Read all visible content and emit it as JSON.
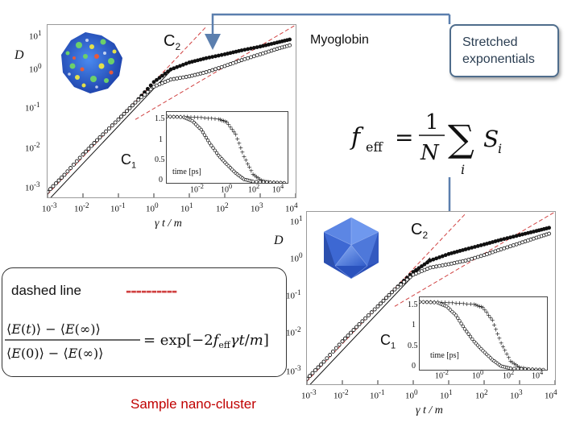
{
  "labels": {
    "myoglobin": "Myoglobin",
    "callout": "Stretched exponentials",
    "dashed_line": "dashed line",
    "dash_sample": "----------",
    "nano_cluster": "Sample nano-cluster",
    "ylabel": "D",
    "xlabel": "γ t / m",
    "c1": "C",
    "c1_sub": "1",
    "c2": "C",
    "c2_sub": "2",
    "inset_xlabel": "time [ps]"
  },
  "equations": {
    "feff": "f_eff = (1/N) Σ_i S_i",
    "relaxation": "(⟨E(t)⟩ − ⟨E(∞)⟩)/(⟨E(0)⟩ − ⟨E(∞)⟩) = exp[−2 f_eff γ t/m]"
  },
  "colors": {
    "callout_border": "#4f6d8c",
    "arrow": "#5b7fae",
    "dashed_line": "#d04040",
    "myoglobin_blue": "#2a5bd7",
    "cluster_blue": "#3f6fd8"
  },
  "chart_data": [
    {
      "type": "scatter",
      "title": "Myoglobin",
      "ylabel": "D",
      "xlabel": "γ t / m",
      "log_x": true,
      "log_y": true,
      "xlim": [
        0.001,
        10000
      ],
      "ylim": [
        0.0005,
        20
      ],
      "x_ticks": [
        "10⁻³",
        "10⁻²",
        "10⁻¹",
        "10⁰",
        "10¹",
        "10²",
        "10³",
        "10⁴"
      ],
      "y_ticks": [
        "10¹",
        "10⁰",
        "10⁻¹",
        "10⁻²",
        "10⁻³"
      ],
      "annotations": [
        "C1",
        "C2"
      ],
      "series": [
        {
          "x": [
            0.001,
            0.003,
            0.01,
            0.03,
            0.1,
            0.3,
            1,
            3,
            10,
            30,
            100,
            300,
            1000,
            3000,
            8000
          ],
          "y": [
            0.0007,
            0.002,
            0.007,
            0.02,
            0.06,
            0.17,
            0.6,
            1.3,
            2.0,
            2.6,
            3.3,
            4.2,
            5.3,
            6.8,
            8.5
          ]
        },
        {
          "x": [
            0.001,
            0.003,
            0.01,
            0.03,
            0.1,
            0.3,
            1,
            3,
            10,
            30,
            100,
            300,
            1000,
            3000,
            8000
          ],
          "y": [
            0.0007,
            0.002,
            0.007,
            0.02,
            0.06,
            0.17,
            0.45,
            0.7,
            0.85,
            1.1,
            1.6,
            2.3,
            3.3,
            4.6,
            6.0
          ]
        }
      ],
      "inset": {
        "xlabel": "time [ps]",
        "log_x": true,
        "xlim": [
          0.001,
          10000
        ],
        "ylim": [
          0,
          1.6
        ],
        "x_ticks": [
          "10⁻²",
          "10⁰",
          "10²",
          "10⁴"
        ],
        "y_ticks": [
          "1.5",
          "1",
          "0.5",
          "0"
        ],
        "series": [
          {
            "x": [
              0.001,
              0.01,
              0.1,
              1,
              3,
              10,
              30,
              100,
              300,
              1000,
              10000
            ],
            "y": [
              1.5,
              1.5,
              1.48,
              1.45,
              1.38,
              1.1,
              0.6,
              0.2,
              0.06,
              0.02,
              0.0
            ]
          },
          {
            "x": [
              0.001,
              0.01,
              0.03,
              0.1,
              0.3,
              1,
              3,
              10,
              30,
              100,
              1000,
              10000
            ],
            "y": [
              1.5,
              1.48,
              1.4,
              1.2,
              0.9,
              0.62,
              0.42,
              0.22,
              0.08,
              0.03,
              0.01,
              0.0
            ]
          }
        ]
      }
    },
    {
      "type": "scatter",
      "title": "Sample nano-cluster",
      "ylabel": "D",
      "xlabel": "γ t / m",
      "log_x": true,
      "log_y": true,
      "xlim": [
        0.001,
        10000
      ],
      "ylim": [
        0.0005,
        20
      ],
      "x_ticks": [
        "10⁻³",
        "10⁻²",
        "10⁻¹",
        "10⁰",
        "10¹",
        "10²",
        "10³",
        "10⁴"
      ],
      "y_ticks": [
        "10¹",
        "10⁰",
        "10⁻¹",
        "10⁻²",
        "10⁻³"
      ],
      "annotations": [
        "C1",
        "C2"
      ],
      "series": [
        {
          "x": [
            0.001,
            0.003,
            0.01,
            0.03,
            0.1,
            0.3,
            1,
            3,
            10,
            30,
            100,
            300,
            1000,
            3000,
            8000
          ],
          "y": [
            0.0007,
            0.002,
            0.007,
            0.02,
            0.06,
            0.17,
            0.5,
            1.0,
            1.5,
            2.0,
            2.7,
            3.6,
            4.8,
            6.2,
            7.8
          ]
        },
        {
          "x": [
            0.001,
            0.003,
            0.01,
            0.03,
            0.1,
            0.3,
            1,
            3,
            10,
            30,
            100,
            300,
            1000,
            3000,
            8000
          ],
          "y": [
            0.0007,
            0.002,
            0.007,
            0.02,
            0.06,
            0.17,
            0.42,
            0.65,
            0.8,
            1.0,
            1.4,
            2.0,
            2.9,
            4.1,
            5.5
          ]
        }
      ],
      "inset": {
        "xlabel": "time [ps]",
        "log_x": true,
        "xlim": [
          0.001,
          10000
        ],
        "ylim": [
          0,
          1.6
        ],
        "x_ticks": [
          "10⁻²",
          "10⁰",
          "10²",
          "10⁴"
        ],
        "y_ticks": [
          "1.5",
          "1",
          "0.5",
          "0"
        ],
        "series": [
          {
            "x": [
              0.001,
              0.01,
              0.1,
              1,
              3,
              10,
              30,
              100,
              300,
              1000,
              10000
            ],
            "y": [
              1.5,
              1.5,
              1.48,
              1.45,
              1.38,
              1.1,
              0.6,
              0.2,
              0.06,
              0.02,
              0.0
            ]
          },
          {
            "x": [
              0.001,
              0.01,
              0.03,
              0.1,
              0.3,
              1,
              3,
              10,
              30,
              100,
              1000,
              10000
            ],
            "y": [
              1.5,
              1.48,
              1.4,
              1.2,
              0.9,
              0.62,
              0.42,
              0.22,
              0.08,
              0.03,
              0.01,
              0.0
            ]
          }
        ]
      }
    }
  ]
}
